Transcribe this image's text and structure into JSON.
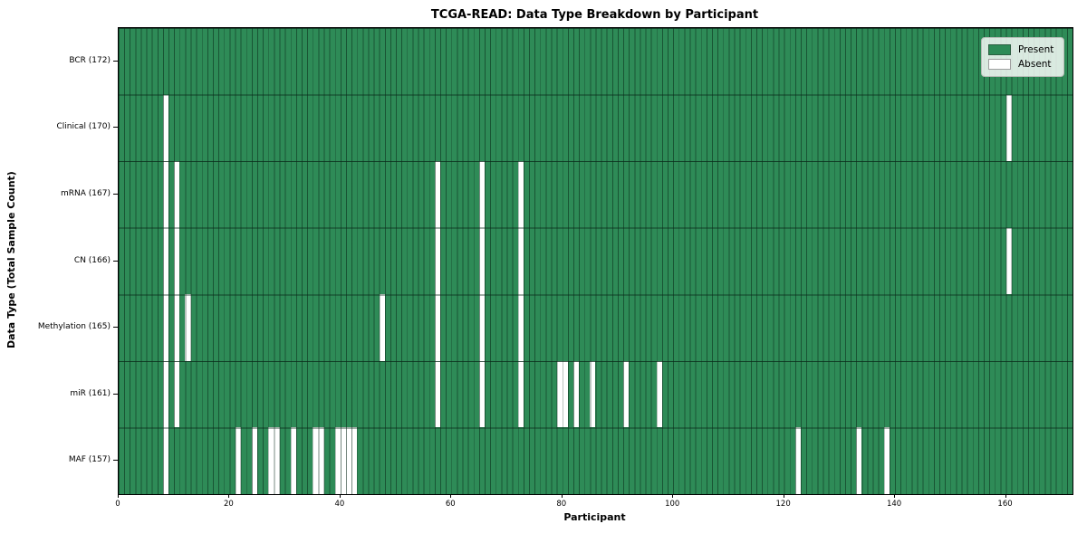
{
  "title": "TCGA-READ: Data Type Breakdown by Participant",
  "chart_data": {
    "type": "heatmap",
    "title": "TCGA-READ: Data Type Breakdown by Participant",
    "xlabel": "Participant",
    "ylabel": "Data Type (Total Sample Count)",
    "n_participants": 172,
    "xlim": [
      0,
      172
    ],
    "x_ticks": [
      0,
      20,
      40,
      60,
      80,
      100,
      120,
      140,
      160
    ],
    "grid": "cell-borders",
    "legend_position": "upper right",
    "legend": {
      "entries": [
        {
          "label": "Present",
          "color": "#2e8b57"
        },
        {
          "label": "Absent",
          "color": "#ffffff"
        }
      ]
    },
    "rows": [
      {
        "label": "BCR (172)",
        "data_type": "BCR",
        "present_count": 172,
        "absent_participants": []
      },
      {
        "label": "Clinical (170)",
        "data_type": "Clinical",
        "present_count": 170,
        "absent_participants": [
          8,
          160
        ]
      },
      {
        "label": "mRNA (167)",
        "data_type": "mRNA",
        "present_count": 167,
        "absent_participants": [
          8,
          10,
          57,
          65,
          72
        ]
      },
      {
        "label": "CN (166)",
        "data_type": "CN",
        "present_count": 166,
        "absent_participants": [
          8,
          10,
          57,
          65,
          72,
          160
        ]
      },
      {
        "label": "Methylation (165)",
        "data_type": "Methylation",
        "present_count": 165,
        "absent_participants": [
          8,
          10,
          12,
          47,
          57,
          65,
          72
        ]
      },
      {
        "label": "miR (161)",
        "data_type": "miR",
        "present_count": 161,
        "absent_participants": [
          8,
          10,
          57,
          65,
          72,
          79,
          80,
          82,
          85,
          91,
          97
        ]
      },
      {
        "label": "MAF (157)",
        "data_type": "MAF",
        "present_count": 157,
        "absent_participants": [
          8,
          21,
          24,
          27,
          28,
          31,
          35,
          36,
          39,
          40,
          41,
          42,
          122,
          133,
          138
        ]
      }
    ],
    "colors": {
      "present": "#2e8b57",
      "absent": "#ffffff",
      "cell_border": "rgba(8,40,24,0.55)",
      "row_border": "rgba(8,40,24,0.75)",
      "frame": "#000000"
    }
  }
}
